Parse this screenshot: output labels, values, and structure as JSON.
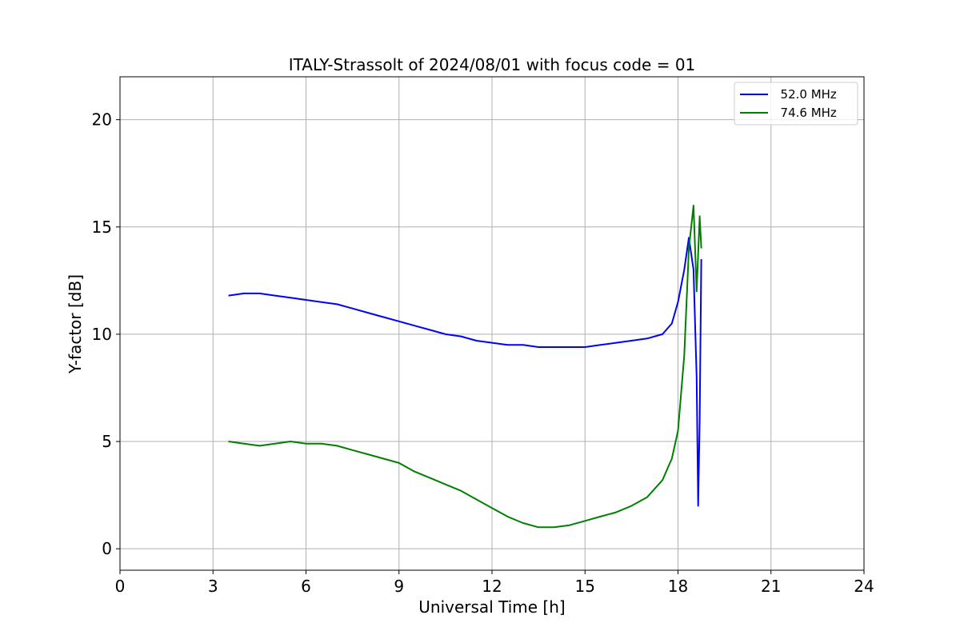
{
  "chart_data": {
    "type": "line",
    "title": "ITALY-Strassolt of 2024/08/01 with focus code = 01",
    "xlabel": "Universal Time [h]",
    "ylabel": "Y-factor [dB]",
    "xlim": [
      0,
      24
    ],
    "ylim": [
      -1,
      22
    ],
    "xticks": [
      0,
      3,
      6,
      9,
      12,
      15,
      18,
      21,
      24
    ],
    "yticks": [
      0,
      5,
      10,
      15,
      20
    ],
    "grid": true,
    "legend_position": "top-right",
    "series": [
      {
        "name": "  52.0 MHz",
        "color": "#0000ff",
        "x": [
          3.5,
          4.0,
          4.5,
          5.0,
          5.5,
          6.0,
          6.5,
          7.0,
          7.5,
          8.0,
          8.5,
          9.0,
          9.5,
          10.0,
          10.5,
          11.0,
          11.5,
          12.0,
          12.5,
          13.0,
          13.5,
          14.0,
          14.5,
          15.0,
          15.5,
          16.0,
          16.5,
          17.0,
          17.5,
          17.8,
          18.0,
          18.2,
          18.35,
          18.5,
          18.6,
          18.65,
          18.7,
          18.75
        ],
        "y": [
          11.8,
          11.9,
          11.9,
          11.8,
          11.7,
          11.6,
          11.5,
          11.4,
          11.2,
          11.0,
          10.8,
          10.6,
          10.4,
          10.2,
          10.0,
          9.9,
          9.7,
          9.6,
          9.5,
          9.5,
          9.4,
          9.4,
          9.4,
          9.4,
          9.5,
          9.6,
          9.7,
          9.8,
          10.0,
          10.5,
          11.5,
          13.0,
          14.5,
          13.0,
          8.0,
          2.0,
          6.0,
          13.5
        ]
      },
      {
        "name": "  74.6 MHz",
        "color": "#008000",
        "x": [
          3.5,
          4.0,
          4.5,
          5.0,
          5.5,
          6.0,
          6.5,
          7.0,
          7.5,
          8.0,
          8.5,
          9.0,
          9.5,
          10.0,
          10.5,
          11.0,
          11.5,
          12.0,
          12.5,
          13.0,
          13.5,
          14.0,
          14.5,
          15.0,
          15.5,
          16.0,
          16.5,
          17.0,
          17.5,
          17.8,
          18.0,
          18.2,
          18.35,
          18.5,
          18.6,
          18.7,
          18.75
        ],
        "y": [
          5.0,
          4.9,
          4.8,
          4.9,
          5.0,
          4.9,
          4.9,
          4.8,
          4.6,
          4.4,
          4.2,
          4.0,
          3.6,
          3.3,
          3.0,
          2.7,
          2.3,
          1.9,
          1.5,
          1.2,
          1.0,
          1.0,
          1.1,
          1.3,
          1.5,
          1.7,
          2.0,
          2.4,
          3.2,
          4.2,
          5.5,
          9.0,
          14.0,
          16.0,
          12.0,
          15.5,
          14.0
        ]
      }
    ]
  }
}
